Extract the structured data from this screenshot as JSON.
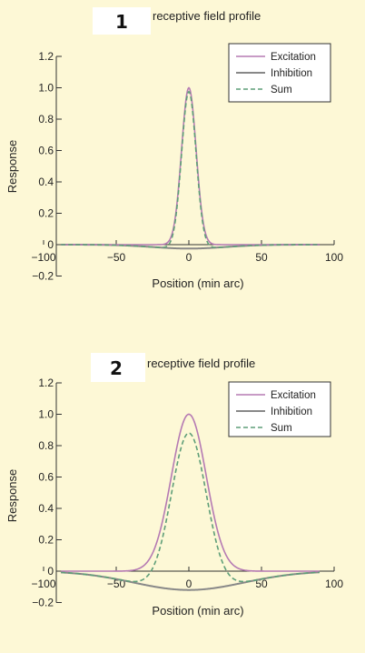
{
  "chart_data": [
    {
      "type": "line",
      "panel_label": "1",
      "title": "receptive field profile",
      "xlabel": "Position (min arc)",
      "ylabel": "Response",
      "xlim": [
        -100,
        100
      ],
      "ylim": [
        -0.2,
        1.2
      ],
      "xticks": [
        -100,
        -50,
        0,
        50,
        100
      ],
      "yticks": [
        -0.2,
        0,
        0.2,
        0.4,
        0.6,
        0.8,
        1.0,
        1.2
      ],
      "ytick_labels": [
        "−0.2",
        "0",
        "0.2",
        "0.4",
        "0.6",
        "0.8",
        "1.0",
        "1.2"
      ],
      "xtick_labels": [
        "−100",
        "−50",
        "0",
        "50",
        "100"
      ],
      "legend_position": "top-right",
      "series": [
        {
          "name": "Excitation",
          "style": "solid",
          "color": "#b57ab3",
          "function": "gaussian",
          "amplitude": 1.0,
          "sigma": 5
        },
        {
          "name": "Inhibition",
          "style": "solid",
          "color": "#888888",
          "function": "gaussian",
          "amplitude": -0.025,
          "sigma": 25
        },
        {
          "name": "Sum",
          "style": "dashed",
          "color": "#5e9e78",
          "function": "excitation_plus_inhibition"
        }
      ],
      "key_points": {
        "excitation_peak": [
          0,
          1.0
        ],
        "sum_peak": [
          0,
          0.975
        ],
        "inhibition_min": [
          0,
          -0.025
        ]
      }
    },
    {
      "type": "line",
      "panel_label": "2",
      "title": "receptive field profile",
      "xlabel": "Position (min arc)",
      "ylabel": "Response",
      "xlim": [
        -100,
        100
      ],
      "ylim": [
        -0.2,
        1.2
      ],
      "xticks": [
        -100,
        -50,
        0,
        50,
        100
      ],
      "yticks": [
        -0.2,
        0,
        0.2,
        0.4,
        0.6,
        0.8,
        1.0,
        1.2
      ],
      "ytick_labels": [
        "−0.2",
        "0",
        "0.2",
        "0.4",
        "0.6",
        "0.8",
        "1.0",
        "1.2"
      ],
      "xtick_labels": [
        "−100",
        "−50",
        "0",
        "50",
        "100"
      ],
      "legend_position": "top-right",
      "series": [
        {
          "name": "Excitation",
          "style": "solid",
          "color": "#b57ab3",
          "function": "gaussian",
          "amplitude": 1.0,
          "sigma": 12
        },
        {
          "name": "Inhibition",
          "style": "solid",
          "color": "#888888",
          "function": "gaussian",
          "amplitude": -0.12,
          "sigma": 38
        },
        {
          "name": "Sum",
          "style": "dashed",
          "color": "#5e9e78",
          "function": "excitation_plus_inhibition"
        }
      ],
      "key_points": {
        "excitation_peak": [
          0,
          1.0
        ],
        "sum_peak": [
          0,
          0.88
        ],
        "inhibition_min": [
          0,
          -0.12
        ]
      }
    }
  ]
}
